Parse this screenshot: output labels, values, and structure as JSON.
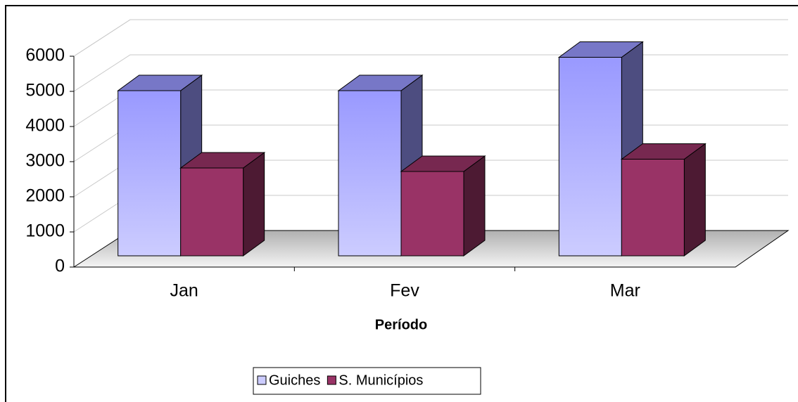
{
  "chart_data": {
    "type": "bar3d",
    "x_label": "Período",
    "categories": [
      "Jan",
      "Fev",
      "Mar"
    ],
    "series": [
      {
        "name": "Guiches",
        "color": "#9999ff",
        "values": [
          4700,
          4700,
          5650
        ]
      },
      {
        "name": "S. Municípios",
        "color": "#993366",
        "values": [
          2500,
          2400,
          2750
        ]
      }
    ],
    "ylim": [
      0,
      6000
    ],
    "yticks": [
      0,
      1000,
      2000,
      3000,
      4000,
      5000,
      6000
    ],
    "grid": true,
    "legend": "bottom"
  }
}
